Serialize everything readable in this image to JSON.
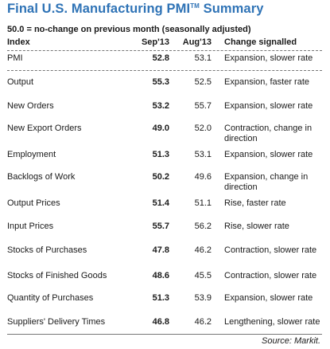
{
  "title": "Final U.S. Manufacturing PMI",
  "title_mark": "TM",
  "title_suffix": "Summary",
  "subtitle": "50.0 = no-change on previous month (seasonally adjusted)",
  "columns": {
    "index": "Index",
    "sep": "Sep'13",
    "aug": "Aug'13",
    "change": "Change signalled"
  },
  "rows": [
    {
      "index": "PMI",
      "sep": "52.8",
      "aug": "53.1",
      "change": "Expansion, slower rate"
    },
    {
      "index": "Output",
      "sep": "55.3",
      "aug": "52.5",
      "change": "Expansion, faster rate"
    },
    {
      "index": "New Orders",
      "sep": "53.2",
      "aug": "55.7",
      "change": "Expansion, slower rate"
    },
    {
      "index": "New Export Orders",
      "sep": "49.0",
      "aug": "52.0",
      "change": "Contraction, change in direction"
    },
    {
      "index": "Employment",
      "sep": "51.3",
      "aug": "53.1",
      "change": "Expansion, slower rate"
    },
    {
      "index": "Backlogs of Work",
      "sep": "50.2",
      "aug": "49.6",
      "change": "Expansion, change in direction"
    },
    {
      "index": "Output Prices",
      "sep": "51.4",
      "aug": "51.1",
      "change": "Rise, faster rate"
    },
    {
      "index": "Input Prices",
      "sep": "55.7",
      "aug": "56.2",
      "change": "Rise, slower rate"
    },
    {
      "index": "Stocks of Purchases",
      "sep": "47.8",
      "aug": "46.2",
      "change": "Contraction, slower rate"
    },
    {
      "index": "Stocks of Finished Goods",
      "sep": "48.6",
      "aug": "45.5",
      "change": "Contraction, slower rate"
    },
    {
      "index": "Quantity of Purchases",
      "sep": "51.3",
      "aug": "53.9",
      "change": "Expansion, slower rate"
    },
    {
      "index": "Suppliers' Delivery Times",
      "sep": "46.8",
      "aug": "46.2",
      "change": "Lengthening, slower rate"
    }
  ],
  "source": "Source: Markit."
}
